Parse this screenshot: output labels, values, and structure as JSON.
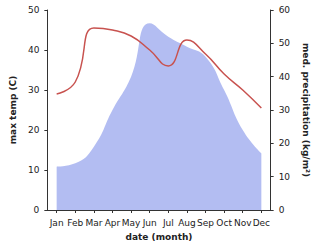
{
  "chart_data": {
    "type": "line",
    "categories": [
      "Jan",
      "Feb",
      "Mar",
      "Apr",
      "May",
      "Jun",
      "Jul",
      "Aug",
      "Sep",
      "Oct",
      "Nov",
      "Dec"
    ],
    "x_label": "date (month)",
    "y_label": "max temp (C)",
    "y2_label": "med. precipitation (kg/m²)",
    "ylim": [
      0,
      50
    ],
    "yticks": [
      0,
      10,
      20,
      30,
      40,
      50
    ],
    "y2lim": [
      0,
      60
    ],
    "y2ticks": [
      0,
      10,
      20,
      30,
      40,
      50,
      60
    ],
    "grid": false,
    "series": [
      {
        "name": "med. precipitation",
        "type": "area",
        "axis": "y2",
        "color": "#b3bdf2",
        "values": [
          13,
          14,
          19,
          30,
          40,
          56,
          52,
          49,
          46,
          36,
          24,
          17
        ]
      },
      {
        "name": "max temp",
        "type": "line",
        "axis": "y",
        "color": "#c8524f",
        "values": [
          29,
          32,
          45.5,
          45,
          43.5,
          40,
          36,
          42.5,
          39,
          34,
          30,
          25.5
        ]
      }
    ]
  }
}
